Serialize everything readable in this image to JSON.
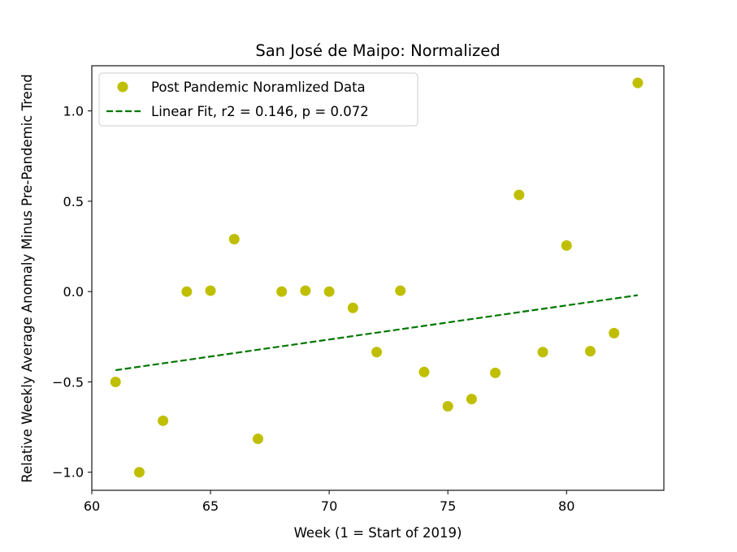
{
  "chart_data": {
    "type": "scatter",
    "title": "San José de Maipo: Normalized",
    "xlabel": "Week (1 = Start of 2019)",
    "ylabel": "Relative Weekly Average Anomaly Minus Pre-Pandemic Trend",
    "xlim": [
      60,
      84.1
    ],
    "ylim": [
      -1.1,
      1.25
    ],
    "xticks": [
      60,
      65,
      70,
      75,
      80
    ],
    "yticks": [
      -1.0,
      -0.5,
      0.0,
      0.5,
      1.0
    ],
    "xtick_labels": [
      "60",
      "65",
      "70",
      "75",
      "80"
    ],
    "ytick_labels": [
      "−1.0",
      "−0.5",
      "0.0",
      "0.5",
      "1.0"
    ],
    "grid": false,
    "legend_position": "top-left",
    "series": [
      {
        "name": "Post Pandemic Noramlized Data",
        "kind": "scatter",
        "color": "#bfbf00",
        "x": [
          61,
          62,
          63,
          64,
          65,
          66,
          67,
          68,
          69,
          70,
          71,
          72,
          73,
          74,
          75,
          76,
          77,
          78,
          79,
          80,
          81,
          82,
          83
        ],
        "y": [
          -0.5,
          -1.0,
          -0.715,
          0.0,
          0.005,
          0.29,
          -0.815,
          0.0,
          0.005,
          0.0,
          -0.09,
          -0.335,
          0.005,
          -0.445,
          -0.635,
          -0.595,
          -0.45,
          0.535,
          -0.335,
          0.255,
          -0.33,
          -0.23,
          1.155
        ]
      },
      {
        "name": "Linear Fit, r2 = 0.146, p = 0.072",
        "kind": "line",
        "style": "dashed",
        "color": "#007700",
        "x": [
          61,
          83
        ],
        "y": [
          -0.435,
          -0.02
        ]
      }
    ]
  }
}
